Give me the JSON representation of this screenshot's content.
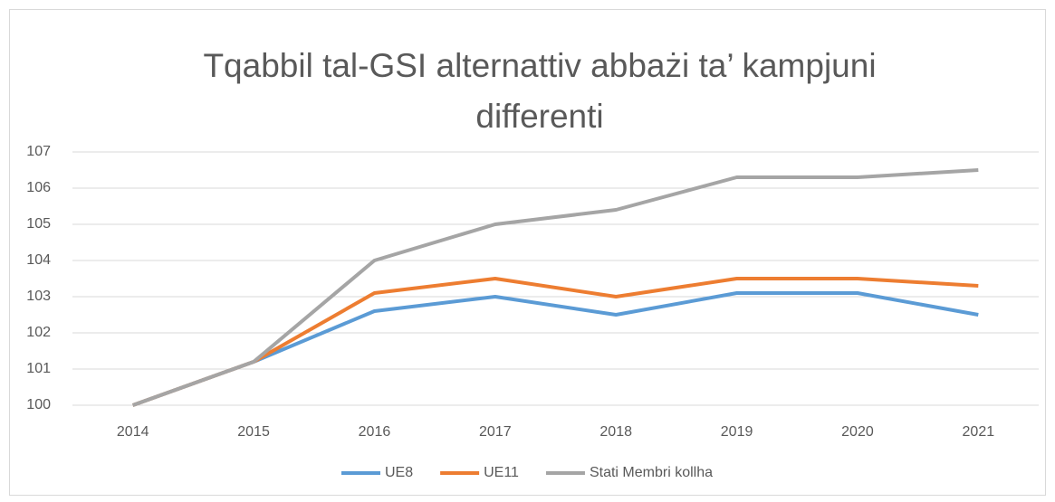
{
  "chart_data": {
    "type": "line",
    "title": "Tqabbil tal-GSI alternattiv abbażi ta’ kampjuni differenti",
    "categories": [
      "2014",
      "2015",
      "2016",
      "2017",
      "2018",
      "2019",
      "2020",
      "2021"
    ],
    "series": [
      {
        "name": "UE8",
        "color": "#5b9bd5",
        "values": [
          100,
          101.2,
          102.6,
          103.0,
          102.5,
          103.1,
          103.1,
          102.5
        ]
      },
      {
        "name": "UE11",
        "color": "#ed7d31",
        "values": [
          100,
          101.2,
          103.1,
          103.5,
          103.0,
          103.5,
          103.5,
          103.3
        ]
      },
      {
        "name": "Stati Membri kollha",
        "color": "#a5a5a5",
        "values": [
          100,
          101.2,
          104.0,
          105.0,
          105.4,
          106.3,
          106.3,
          106.5
        ]
      }
    ],
    "ylim": [
      100,
      107
    ],
    "yticks": [
      100,
      101,
      102,
      103,
      104,
      105,
      106,
      107
    ],
    "grid": true,
    "legend": "bottom"
  }
}
